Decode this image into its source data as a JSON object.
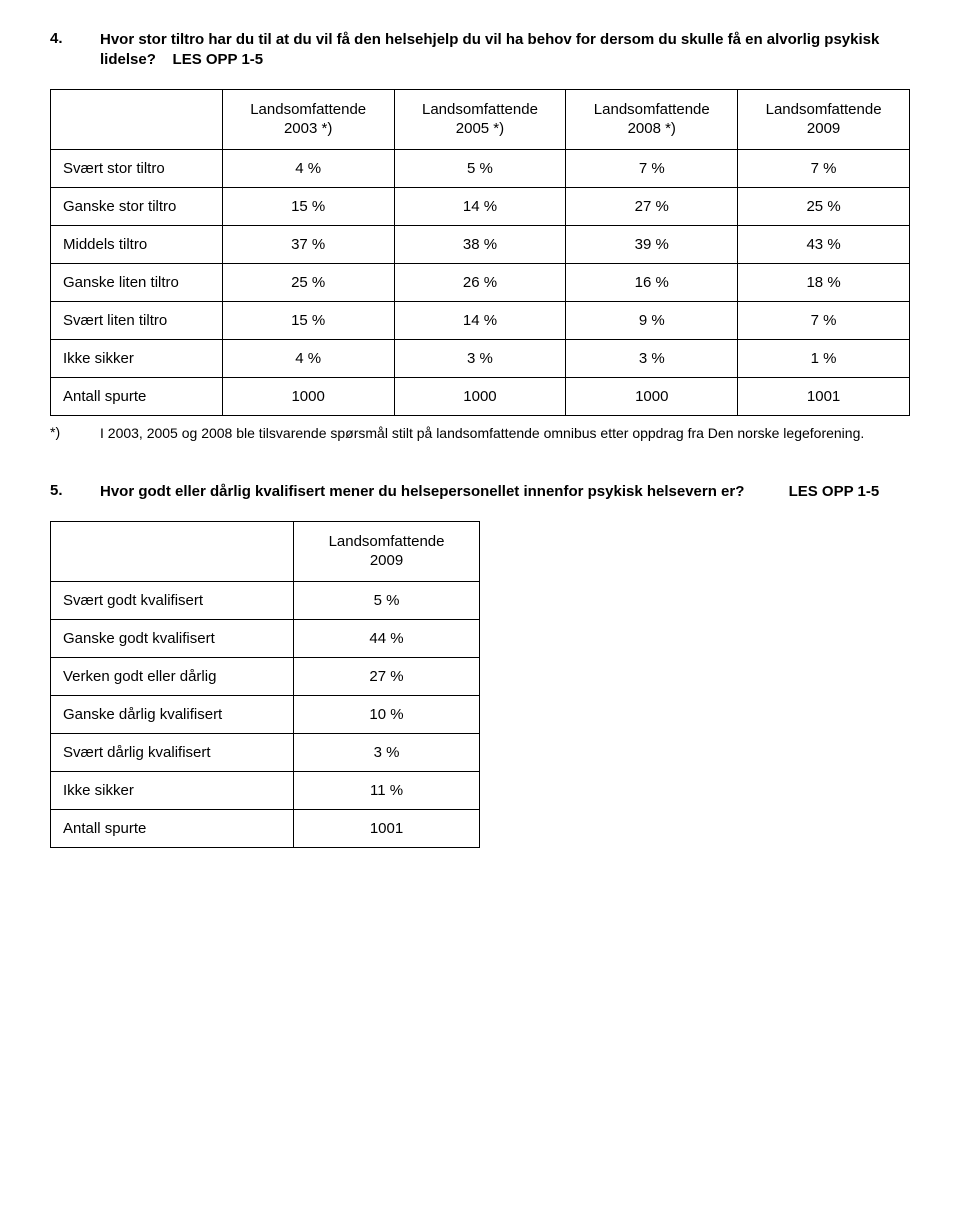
{
  "q4": {
    "number": "4.",
    "text": "Hvor stor tiltro har du til at du vil få den helsehjelp du vil ha behov for dersom du skulle få en alvorlig psykisk lidelse?",
    "instruction": "LES OPP 1-5",
    "cols": [
      {
        "l1": "Landsomfattende",
        "l2": "2003 *)"
      },
      {
        "l1": "Landsomfattende",
        "l2": "2005 *)"
      },
      {
        "l1": "Landsomfattende",
        "l2": "2008 *)"
      },
      {
        "l1": "Landsomfattende",
        "l2": "2009"
      }
    ],
    "rows": [
      {
        "label": "Svært stor tiltro",
        "v": [
          "4 %",
          "5 %",
          "7 %",
          "7 %"
        ]
      },
      {
        "label": "Ganske stor tiltro",
        "v": [
          "15 %",
          "14 %",
          "27 %",
          "25 %"
        ]
      },
      {
        "label": "Middels tiltro",
        "v": [
          "37 %",
          "38 %",
          "39 %",
          "43 %"
        ]
      },
      {
        "label": "Ganske liten tiltro",
        "v": [
          "25 %",
          "26 %",
          "16 %",
          "18 %"
        ]
      },
      {
        "label": "Svært liten tiltro",
        "v": [
          "15 %",
          "14 %",
          "9 %",
          "7 %"
        ]
      },
      {
        "label": "Ikke sikker",
        "v": [
          "4 %",
          "3 %",
          "3 %",
          "1 %"
        ]
      },
      {
        "label": "Antall spurte",
        "v": [
          "1000",
          "1000",
          "1000",
          "1001"
        ]
      }
    ],
    "footnote_mark": "*)",
    "footnote": "I 2003, 2005 og 2008 ble tilsvarende spørsmål stilt på landsomfattende omnibus etter oppdrag fra Den norske legeforening."
  },
  "q5": {
    "number": "5.",
    "text": "Hvor godt eller dårlig kvalifisert mener du helsepersonellet innenfor psykisk helsevern er?",
    "instruction": "LES OPP 1-5",
    "col": {
      "l1": "Landsomfattende",
      "l2": "2009"
    },
    "rows": [
      {
        "label": "Svært godt kvalifisert",
        "v": "5 %"
      },
      {
        "label": "Ganske godt kvalifisert",
        "v": "44 %"
      },
      {
        "label": "Verken godt eller dårlig",
        "v": "27 %"
      },
      {
        "label": "Ganske dårlig kvalifisert",
        "v": "10 %"
      },
      {
        "label": "Svært dårlig kvalifisert",
        "v": "3 %"
      },
      {
        "label": "Ikke sikker",
        "v": "11 %"
      },
      {
        "label": "Antall spurte",
        "v": "1001"
      }
    ]
  }
}
